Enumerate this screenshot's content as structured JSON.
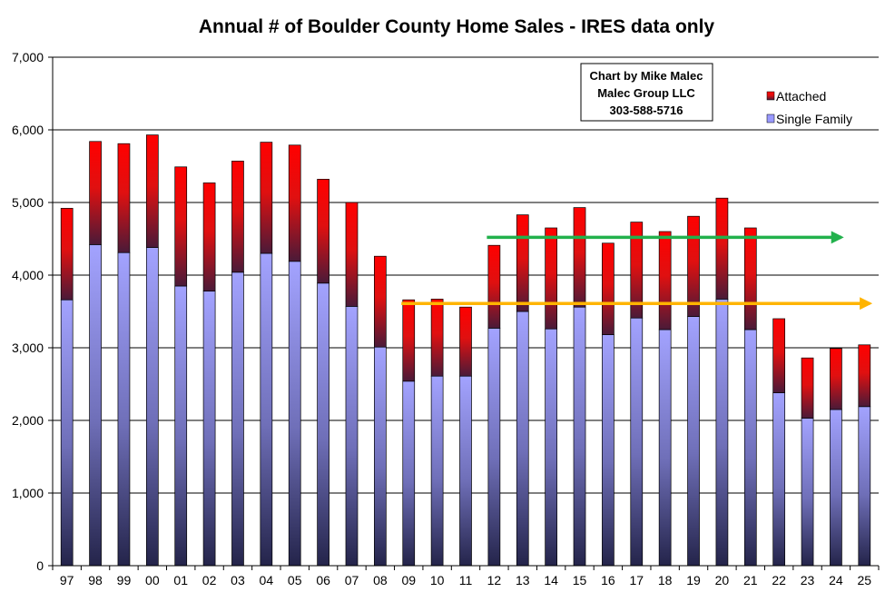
{
  "chart_data": {
    "type": "bar",
    "stacked": true,
    "title": "Annual # of Boulder County Home Sales - IRES data only",
    "xlabel": "",
    "ylabel": "",
    "ylim": [
      0,
      7000
    ],
    "y_ticks": [
      "0",
      "1,000",
      "2,000",
      "3,000",
      "4,000",
      "5,000",
      "6,000",
      "7,000"
    ],
    "grid": true,
    "legend_position": "top-right",
    "categories": [
      "97",
      "98",
      "99",
      "00",
      "01",
      "02",
      "03",
      "04",
      "05",
      "06",
      "07",
      "08",
      "09",
      "10",
      "11",
      "12",
      "13",
      "14",
      "15",
      "16",
      "17",
      "18",
      "19",
      "20",
      "21",
      "22",
      "23",
      "24",
      "25"
    ],
    "series": [
      {
        "name": "Single Family",
        "color": "#9999ff",
        "values": [
          3660,
          4420,
          4310,
          4380,
          3850,
          3780,
          4040,
          4300,
          4190,
          3890,
          3570,
          3010,
          2540,
          2610,
          2610,
          3270,
          3500,
          3260,
          3560,
          3180,
          3410,
          3250,
          3430,
          3670,
          3250,
          2380,
          2030,
          2150,
          2190
        ]
      },
      {
        "name": "Attached",
        "color": "#ff0000",
        "values": [
          1260,
          1420,
          1500,
          1550,
          1640,
          1490,
          1530,
          1530,
          1600,
          1430,
          1430,
          1250,
          1120,
          1060,
          950,
          1140,
          1330,
          1390,
          1370,
          1260,
          1320,
          1350,
          1380,
          1390,
          1400,
          1020,
          830,
          840,
          850
        ]
      }
    ],
    "annotations": [
      {
        "type": "arrow",
        "color": "#22b14c",
        "x_start": "12",
        "x_end": "24",
        "y": 4520
      },
      {
        "type": "arrow",
        "color": "#ffb400",
        "x_start": "09",
        "x_end": "25",
        "y": 3610
      }
    ],
    "credit_box": {
      "lines": [
        "Chart by Mike Malec",
        "Malec Group LLC",
        "303-588-5716"
      ]
    }
  }
}
